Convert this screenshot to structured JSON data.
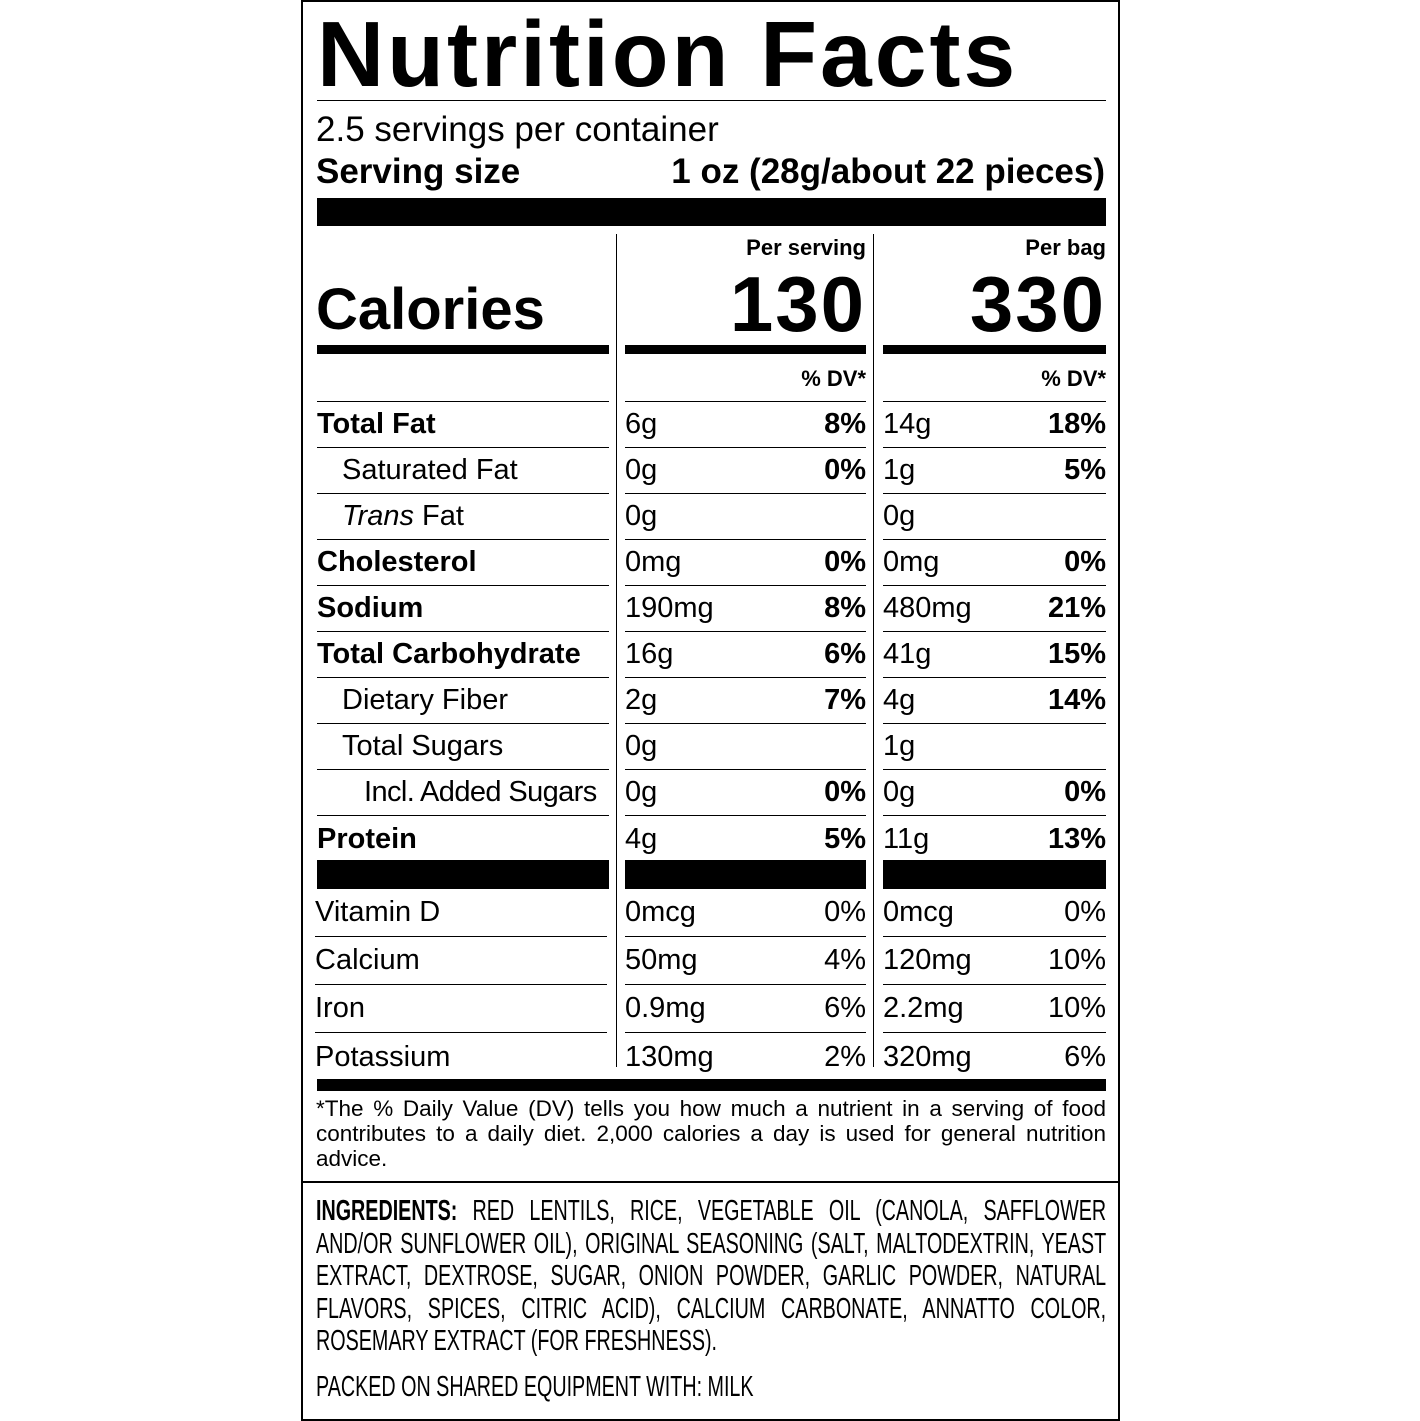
{
  "title": "Nutrition Facts",
  "servings_per_container": "2.5 servings per container",
  "serving_size": {
    "label": "Serving size",
    "value": "1 oz (28g/about 22 pieces)"
  },
  "columns": {
    "per_serving": "Per serving",
    "per_bag": "Per bag"
  },
  "calories": {
    "label": "Calories",
    "per_serving": "130",
    "per_bag": "330"
  },
  "dv_header": "% DV*",
  "nutrients": [
    {
      "label": "Total Fat",
      "bold": true,
      "indent": 0,
      "serving_amount": "6g",
      "serving_dv": "8%",
      "bag_amount": "14g",
      "bag_dv": "18%"
    },
    {
      "label": "Saturated Fat",
      "bold": false,
      "indent": 1,
      "serving_amount": "0g",
      "serving_dv": "0%",
      "bag_amount": "1g",
      "bag_dv": "5%"
    },
    {
      "label_italic": "Trans",
      "label": " Fat",
      "bold": false,
      "indent": 1,
      "serving_amount": "0g",
      "serving_dv": "",
      "bag_amount": "0g",
      "bag_dv": ""
    },
    {
      "label": "Cholesterol",
      "bold": true,
      "indent": 0,
      "serving_amount": "0mg",
      "serving_dv": "0%",
      "bag_amount": "0mg",
      "bag_dv": "0%"
    },
    {
      "label": "Sodium",
      "bold": true,
      "indent": 0,
      "serving_amount": "190mg",
      "serving_dv": "8%",
      "bag_amount": "480mg",
      "bag_dv": "21%"
    },
    {
      "label": "Total Carbohydrate",
      "bold": true,
      "indent": 0,
      "serving_amount": "16g",
      "serving_dv": "6%",
      "bag_amount": "41g",
      "bag_dv": "15%"
    },
    {
      "label": "Dietary Fiber",
      "bold": false,
      "indent": 1,
      "serving_amount": "2g",
      "serving_dv": "7%",
      "bag_amount": "4g",
      "bag_dv": "14%"
    },
    {
      "label": "Total Sugars",
      "bold": false,
      "indent": 1,
      "serving_amount": "0g",
      "serving_dv": "",
      "bag_amount": "1g",
      "bag_dv": ""
    },
    {
      "label": "Incl. Added Sugars",
      "bold": false,
      "indent": 2,
      "serving_amount": "0g",
      "serving_dv": "0%",
      "bag_amount": "0g",
      "bag_dv": "0%"
    },
    {
      "label": "Protein",
      "bold": true,
      "indent": 0,
      "serving_amount": "4g",
      "serving_dv": "5%",
      "bag_amount": "11g",
      "bag_dv": "13%"
    }
  ],
  "vitamins": [
    {
      "label": "Vitamin D",
      "serving_amount": "0mcg",
      "serving_dv": "0%",
      "bag_amount": "0mcg",
      "bag_dv": "0%"
    },
    {
      "label": "Calcium",
      "serving_amount": "50mg",
      "serving_dv": "4%",
      "bag_amount": "120mg",
      "bag_dv": "10%"
    },
    {
      "label": "Iron",
      "serving_amount": "0.9mg",
      "serving_dv": "6%",
      "bag_amount": "2.2mg",
      "bag_dv": "10%"
    },
    {
      "label": "Potassium",
      "serving_amount": "130mg",
      "serving_dv": "2%",
      "bag_amount": "320mg",
      "bag_dv": "6%"
    }
  ],
  "footnote": "*The % Daily Value (DV)  tells you how much a nutrient in a serving of food contributes to a daily diet. 2,000 calories a day is used for general nutrition advice.",
  "ingredients": {
    "label": "INGREDIENTS:",
    "text": " RED LENTILS, RICE, VEGETABLE OIL (CANOLA, SAFFLOWER AND/OR SUNFLOWER OIL), ORIGINAL SEASONING (SALT, MALTODEXTRIN, YEAST EXTRACT, DEXTROSE, SUGAR, ONION POWDER, GARLIC POWDER, NATURAL FLAVORS, SPICES, CITRIC ACID), CALCIUM CARBONATE, ANNATTO COLOR, ROSEMARY EXTRACT (FOR FRESHNESS)."
  },
  "allergen": "PACKED ON SHARED EQUIPMENT WITH: MILK"
}
